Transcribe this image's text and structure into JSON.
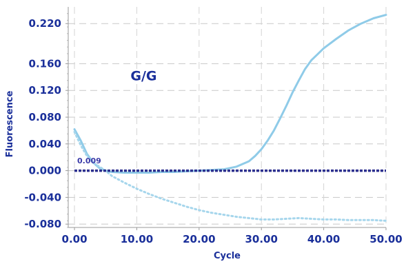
{
  "chart_data": {
    "type": "line",
    "xlabel": "Cycle",
    "ylabel": "Fluorescence",
    "xlim": [
      -1,
      50
    ],
    "ylim": [
      -0.085,
      0.245
    ],
    "x_ticks": [
      "0.00",
      "10.00",
      "20.00",
      "30.00",
      "40.00",
      "50.00"
    ],
    "y_ticks": [
      "0.220",
      "0.160",
      "0.120",
      "0.080",
      "0.040",
      "0.000",
      "-0.040",
      "-0.080"
    ],
    "grid": true,
    "legend": "none",
    "annotations": [
      {
        "text": "G/G",
        "x": 9,
        "y": 0.135
      },
      {
        "text": "0.009",
        "x": 0,
        "y": 0.009
      }
    ],
    "threshold": 0.0,
    "series": [
      {
        "color": "#8fcbe8",
        "style": "solid",
        "x": [
          0,
          1,
          2,
          3,
          4,
          5,
          6,
          8,
          10,
          12,
          14,
          16,
          18,
          20,
          22,
          24,
          26,
          28,
          29,
          30,
          31,
          32,
          33,
          34,
          35,
          36,
          37,
          38,
          39,
          40,
          42,
          44,
          46,
          48,
          50
        ],
        "y": [
          0.062,
          0.045,
          0.025,
          0.012,
          0.004,
          0.0,
          -0.002,
          -0.003,
          -0.003,
          -0.003,
          -0.002,
          -0.002,
          -0.001,
          0.0,
          0.001,
          0.002,
          0.006,
          0.014,
          0.022,
          0.032,
          0.045,
          0.06,
          0.078,
          0.097,
          0.117,
          0.135,
          0.152,
          0.165,
          0.174,
          0.183,
          0.197,
          0.21,
          0.22,
          0.228,
          0.233
        ]
      },
      {
        "color": "#a6d6ec",
        "style": "dotted",
        "x": [
          0,
          1,
          2,
          3,
          4,
          5,
          6,
          8,
          10,
          12,
          14,
          16,
          18,
          20,
          22,
          24,
          26,
          28,
          30,
          32,
          34,
          36,
          38,
          40,
          42,
          44,
          46,
          48,
          50
        ],
        "y": [
          0.058,
          0.038,
          0.022,
          0.012,
          0.006,
          0.0,
          -0.008,
          -0.018,
          -0.027,
          -0.035,
          -0.042,
          -0.048,
          -0.054,
          -0.059,
          -0.063,
          -0.066,
          -0.069,
          -0.071,
          -0.073,
          -0.073,
          -0.072,
          -0.071,
          -0.072,
          -0.073,
          -0.073,
          -0.074,
          -0.074,
          -0.074,
          -0.075
        ]
      },
      {
        "color": "#2b2f8f",
        "style": "dashed",
        "x": [
          0,
          50
        ],
        "y": [
          0.0,
          0.0
        ]
      }
    ]
  }
}
